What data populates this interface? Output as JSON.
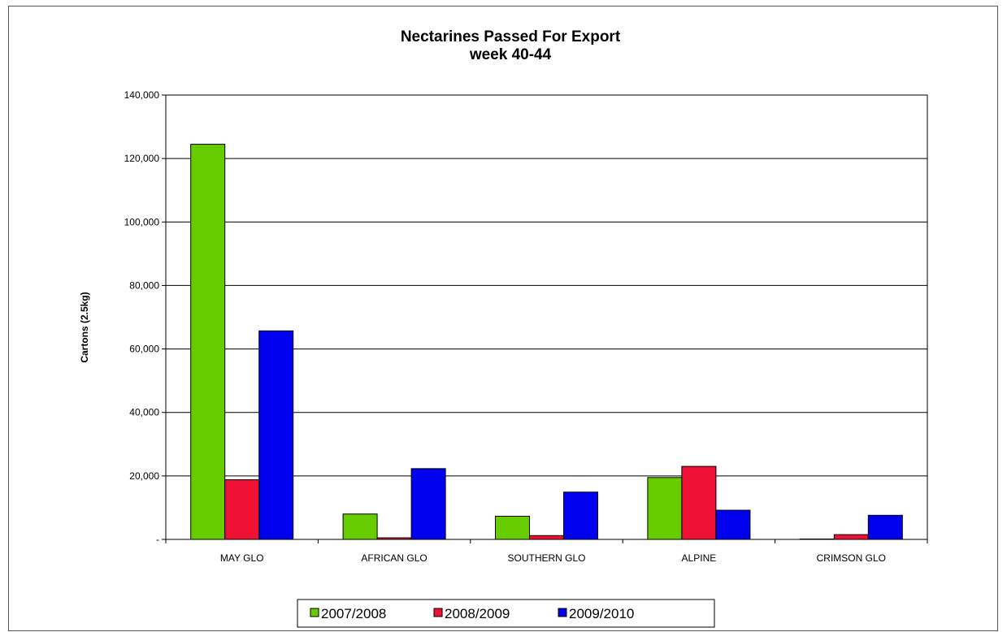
{
  "chart_data": {
    "type": "bar",
    "title": "Nectarines Passed For Export",
    "subtitle": "week 40-44",
    "ylabel": "Cartons (2.5kg)",
    "xlabel": "",
    "ylim": [
      0,
      140000
    ],
    "y_ticks": [
      0,
      20000,
      40000,
      60000,
      80000,
      100000,
      120000,
      140000
    ],
    "y_tick_labels": [
      "-",
      "20,000",
      "40,000",
      "60,000",
      "80,000",
      "100,000",
      "120,000",
      "140,000"
    ],
    "grid": true,
    "legend_position": "bottom",
    "categories": [
      "MAY GLO",
      "AFRICAN GLO",
      "SOUTHERN GLO",
      "ALPINE",
      "CRIMSON GLO"
    ],
    "series": [
      {
        "name": "2007/2008",
        "color": "#66cc00",
        "values": [
          124500,
          8000,
          7300,
          19500,
          0
        ]
      },
      {
        "name": "2008/2009",
        "color": "#ee1133",
        "values": [
          18800,
          500,
          1200,
          23000,
          1500
        ]
      },
      {
        "name": "2009/2010",
        "color": "#0000ee",
        "values": [
          65700,
          22300,
          14900,
          9200,
          7600
        ]
      }
    ]
  }
}
